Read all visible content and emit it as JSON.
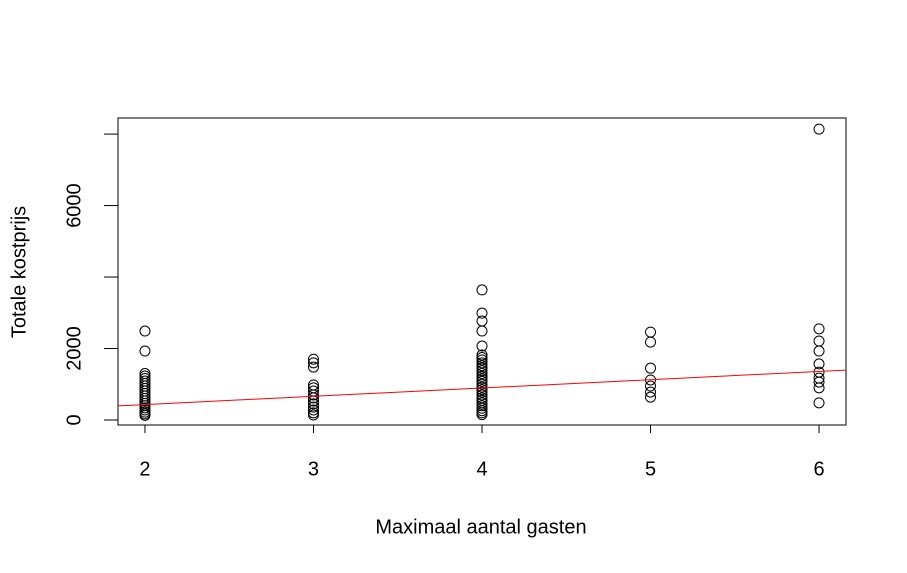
{
  "chart_data": {
    "type": "scatter",
    "x_label": "Maximaal aantal gasten",
    "y_label": "Totale kostprijs",
    "xlim": [
      1.84,
      6.16
    ],
    "xticks": [
      2,
      3,
      4,
      5,
      6
    ],
    "ylim": [
      -140,
      8450
    ],
    "yticks": [
      0,
      2000,
      {
        "value": 4000,
        "label": null
      },
      6000,
      {
        "value": 8000,
        "label": null
      }
    ],
    "point_color": "#000000",
    "x": [
      2,
      2,
      2,
      2,
      2,
      2,
      2,
      2,
      2,
      2,
      2,
      2,
      2,
      2,
      2,
      2,
      2,
      2,
      2,
      2,
      2,
      3,
      3,
      3,
      3,
      3,
      3,
      3,
      3,
      3,
      3,
      3,
      3,
      3,
      3,
      4,
      4,
      4,
      4,
      4,
      4,
      4,
      4,
      4,
      4,
      4,
      4,
      4,
      4,
      4,
      4,
      4,
      4,
      4,
      4,
      4,
      4,
      4,
      4,
      4,
      4,
      4,
      4,
      4,
      5,
      5,
      5,
      5,
      5,
      5,
      5,
      6,
      6,
      6,
      6,
      6,
      6,
      6,
      6,
      6,
      6
    ],
    "y": [
      2490,
      1930,
      1300,
      1230,
      1160,
      1090,
      1020,
      950,
      880,
      810,
      740,
      670,
      600,
      530,
      460,
      400,
      340,
      280,
      220,
      170,
      130,
      1700,
      1600,
      1480,
      980,
      900,
      810,
      700,
      620,
      530,
      450,
      360,
      280,
      200,
      140,
      3640,
      2990,
      2770,
      2490,
      2070,
      1820,
      1750,
      1680,
      1600,
      1520,
      1450,
      1380,
      1300,
      1220,
      1150,
      1080,
      1000,
      920,
      850,
      780,
      700,
      620,
      550,
      480,
      400,
      330,
      260,
      200,
      150,
      2460,
      2180,
      1450,
      1120,
      950,
      780,
      640,
      8140,
      2550,
      2210,
      1930,
      1570,
      1340,
      1170,
      1060,
      900,
      480
    ],
    "regression": {
      "intercept": -33,
      "slope": 232,
      "color": "#ff0000"
    }
  }
}
